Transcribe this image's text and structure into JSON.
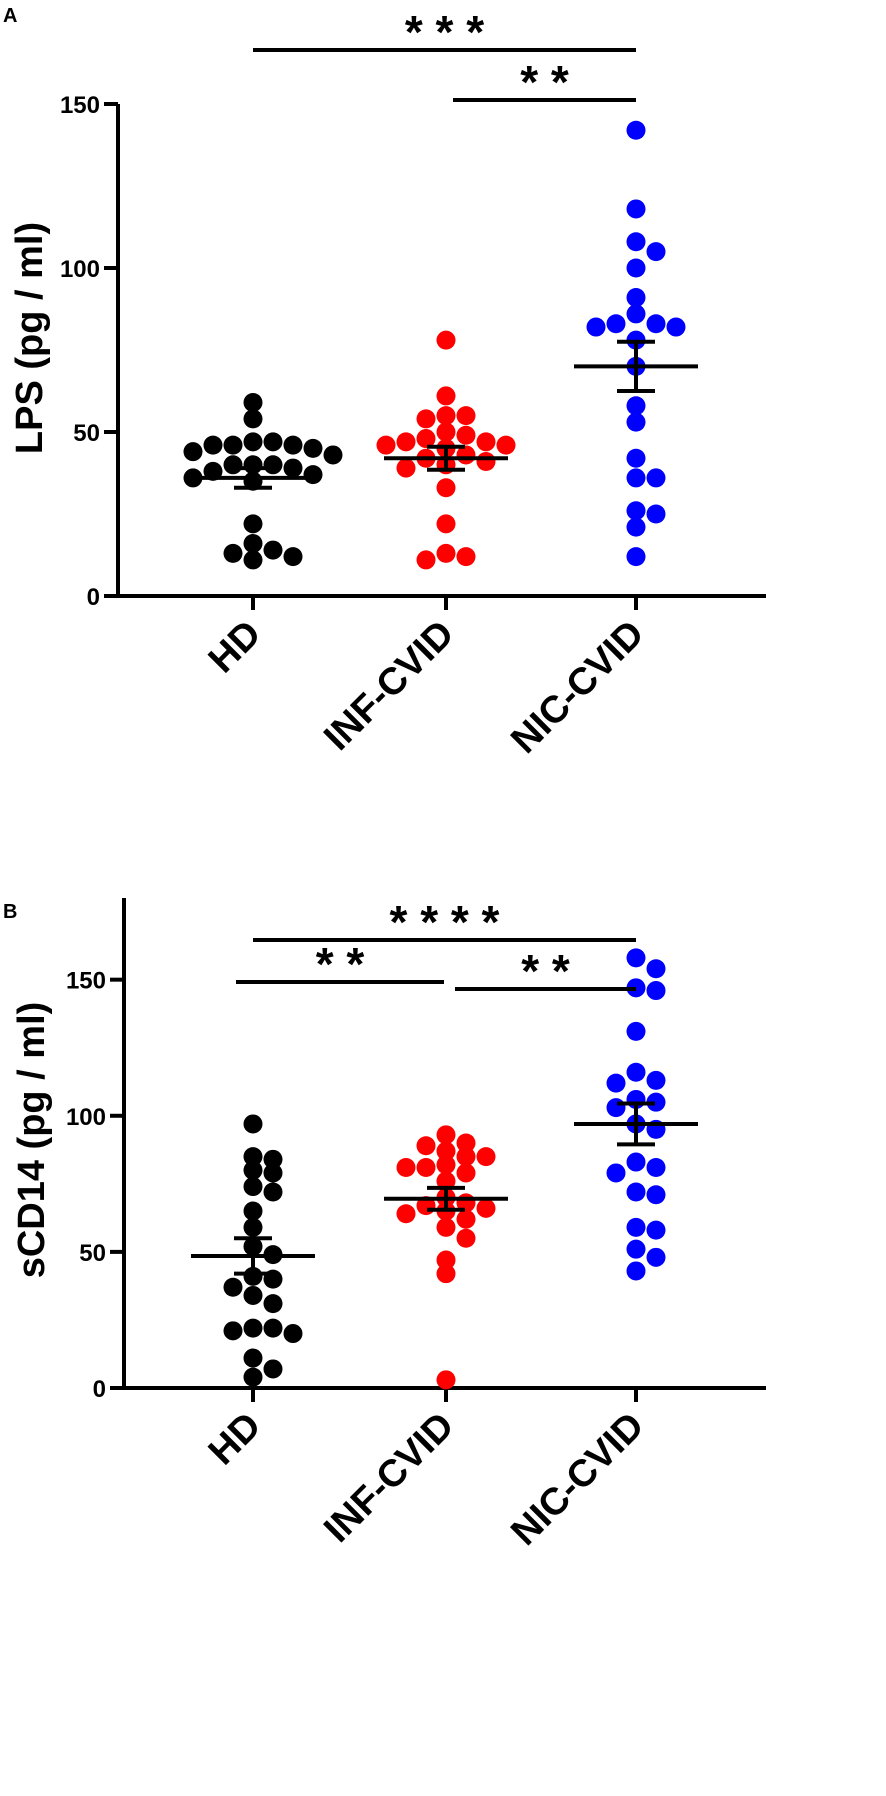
{
  "figure": {
    "colors": {
      "HD": "#000000",
      "INF-CVID": "#ff0000",
      "NIC-CVID": "#0000ff",
      "axis": "#000000"
    }
  },
  "chart_data": [
    {
      "type": "scatter",
      "panel": "A",
      "ylabel": "LPS (pg / ml)",
      "ylim": [
        0,
        150
      ],
      "yticks": [
        0,
        50,
        100,
        150
      ],
      "categories": [
        "HD",
        "INF-CVID",
        "NIC-CVID"
      ],
      "series": [
        {
          "name": "HD",
          "values": [
            59,
            54,
            47,
            47,
            46,
            46,
            46,
            45,
            44,
            43,
            40,
            40,
            40,
            39,
            38,
            37,
            36,
            35,
            22,
            16,
            14,
            13,
            12,
            11
          ],
          "mean": 36,
          "sem_low": 33,
          "sem_high": 39
        },
        {
          "name": "INF-CVID",
          "values": [
            78,
            61,
            55,
            55,
            54,
            50,
            49,
            48,
            47,
            47,
            46,
            46,
            45,
            43,
            42,
            41,
            40,
            39,
            33,
            22,
            13,
            12,
            11
          ],
          "mean": 42,
          "sem_low": 38.5,
          "sem_high": 45.5
        },
        {
          "name": "NIC-CVID",
          "values": [
            142,
            118,
            108,
            105,
            100,
            91,
            86,
            83,
            83,
            82,
            82,
            78,
            70,
            58,
            53,
            42,
            36,
            36,
            26,
            25,
            21,
            12
          ],
          "mean": 70,
          "sem_low": 62.5,
          "sem_high": 77.5
        }
      ],
      "significance": [
        {
          "from": "HD",
          "to": "NIC-CVID",
          "label": "* * *"
        },
        {
          "from": "INF-CVID",
          "to": "NIC-CVID",
          "label": "* *"
        }
      ]
    },
    {
      "type": "scatter",
      "panel": "B",
      "ylabel": "sCD14 (pg / ml)",
      "ylim": [
        0,
        180
      ],
      "yticks": [
        0,
        50,
        100,
        150
      ],
      "categories": [
        "HD",
        "INF-CVID",
        "NIC-CVID"
      ],
      "series": [
        {
          "name": "HD",
          "values": [
            97,
            85,
            84,
            80,
            79,
            74,
            72,
            65,
            59,
            52,
            49,
            41,
            40,
            37,
            34,
            31,
            22,
            22,
            21,
            20,
            11,
            7,
            4
          ],
          "mean": 48.5,
          "sem_low": 42,
          "sem_high": 55
        },
        {
          "name": "INF-CVID",
          "values": [
            93,
            90,
            89,
            87,
            85,
            85,
            82,
            81,
            81,
            79,
            76,
            70,
            68,
            67,
            66,
            65,
            64,
            62,
            59,
            55,
            47,
            42,
            3
          ],
          "mean": 69.5,
          "sem_low": 65.5,
          "sem_high": 73.5
        },
        {
          "name": "NIC-CVID",
          "values": [
            158,
            154,
            147,
            146,
            131,
            116,
            113,
            112,
            106,
            105,
            103,
            97,
            95,
            83,
            81,
            79,
            72,
            71,
            59,
            58,
            51,
            48,
            43
          ],
          "mean": 97,
          "sem_low": 89.5,
          "sem_high": 104.5
        }
      ],
      "significance": [
        {
          "from": "HD",
          "to": "NIC-CVID",
          "label": "* * * *"
        },
        {
          "from": "INF-CVID",
          "to": "NIC-CVID",
          "label": "* *"
        },
        {
          "from": "HD",
          "to": "INF-CVID",
          "label": "* *"
        }
      ]
    }
  ]
}
